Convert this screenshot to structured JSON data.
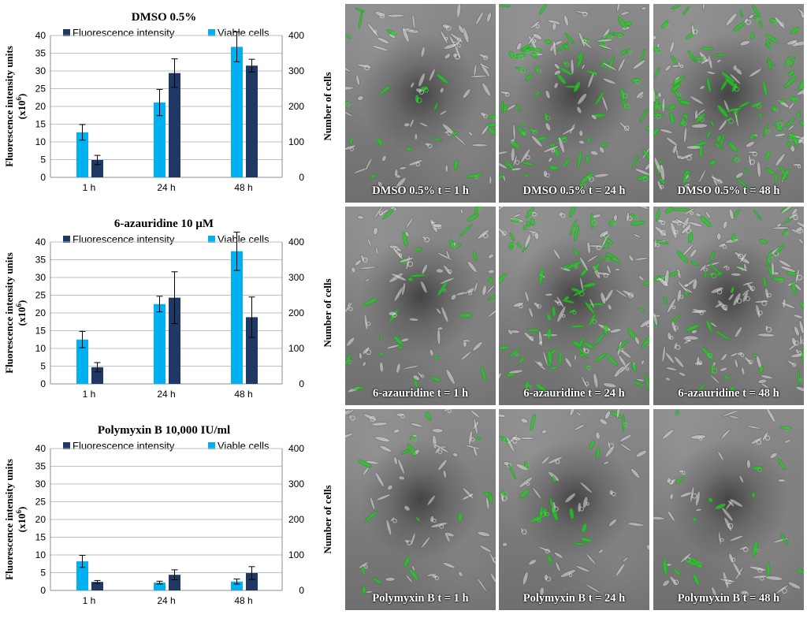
{
  "chart_data": [
    {
      "type": "bar",
      "title": "DMSO 0.5%",
      "categories": [
        "1 h",
        "24 h",
        "48 h"
      ],
      "ylabel": "Fluorescence intensity units (x10^6)",
      "y2label": "Number of cells",
      "ylim": [
        0,
        40
      ],
      "y2lim": [
        0,
        400
      ],
      "yticks": [
        "0",
        "5",
        "10",
        "15",
        "20",
        "25",
        "30",
        "35",
        "40"
      ],
      "y2ticks": [
        "0",
        "100",
        "200",
        "300",
        "400"
      ],
      "series": [
        {
          "name": "Fluorescence intensity",
          "axis": "left",
          "values": [
            4.9,
            29.4,
            31.5
          ],
          "errors": [
            1.3,
            4.0,
            1.8
          ],
          "color": "#1f3864"
        },
        {
          "name": "Viable cells",
          "axis": "right",
          "values": [
            127,
            211,
            368
          ],
          "errors": [
            22,
            37,
            42
          ],
          "color": "#00b0f0"
        }
      ],
      "grid": true,
      "legend": "top"
    },
    {
      "type": "bar",
      "title": "6-azauridine  10 µM",
      "categories": [
        "1 h",
        "24 h",
        "48 h"
      ],
      "ylabel": "Fluorescence intensity units (x10^6)",
      "y2label": "Number of cells",
      "ylim": [
        0,
        40
      ],
      "y2lim": [
        0,
        400
      ],
      "yticks": [
        "0",
        "5",
        "10",
        "15",
        "20",
        "25",
        "30",
        "35",
        "40"
      ],
      "y2ticks": [
        "0",
        "100",
        "200",
        "300",
        "400"
      ],
      "series": [
        {
          "name": "Fluorescence intensity",
          "axis": "left",
          "values": [
            4.7,
            24.3,
            18.8
          ],
          "errors": [
            1.3,
            7.3,
            5.7
          ],
          "color": "#1f3864"
        },
        {
          "name": "Viable cells",
          "axis": "right",
          "values": [
            125,
            225,
            374
          ],
          "errors": [
            23,
            22,
            54
          ],
          "color": "#00b0f0"
        }
      ],
      "grid": true,
      "legend": "top"
    },
    {
      "type": "bar",
      "title": "Polymyxin  B  10,000 IU/ml",
      "categories": [
        "1 h",
        "24 h",
        "48 h"
      ],
      "ylabel": "Fluorescence intensity units (x10^6)",
      "y2label": "Number of cells",
      "ylim": [
        0,
        40
      ],
      "y2lim": [
        0,
        400
      ],
      "yticks": [
        "0",
        "5",
        "10",
        "15",
        "20",
        "25",
        "30",
        "35",
        "40"
      ],
      "y2ticks": [
        "0",
        "100",
        "200",
        "300",
        "400"
      ],
      "series": [
        {
          "name": "Fluorescence intensity",
          "axis": "left",
          "values": [
            2.4,
            4.4,
            4.9
          ],
          "errors": [
            0.4,
            1.4,
            1.8
          ],
          "color": "#1f3864"
        },
        {
          "name": "Viable cells",
          "axis": "right",
          "values": [
            82,
            22,
            25
          ],
          "errors": [
            17,
            4,
            7
          ],
          "color": "#00b0f0"
        }
      ],
      "grid": true,
      "legend": "top"
    }
  ],
  "images": [
    {
      "caption": "DMSO  0.5% t = 1 h",
      "green": 0.25,
      "density": 0.35
    },
    {
      "caption": "DMSO  0.5% t = 24 h",
      "green": 0.55,
      "density": 0.7
    },
    {
      "caption": "DMSO  0.5% t = 48 h",
      "green": 0.6,
      "density": 0.9
    },
    {
      "caption": "6-azauridine  t = 1 h",
      "green": 0.25,
      "density": 0.45
    },
    {
      "caption": "6-azauridine  t = 24 h",
      "green": 0.5,
      "density": 0.75
    },
    {
      "caption": "6-azauridine  t = 48 h",
      "green": 0.3,
      "density": 0.9
    },
    {
      "caption": "Polymyxin  B  t = 1 h",
      "green": 0.15,
      "density": 0.3
    },
    {
      "caption": "Polymyxin  B  t = 24 h",
      "green": 0.3,
      "density": 0.25
    },
    {
      "caption": "Polymyxin  B  t = 48 h",
      "green": 0.25,
      "density": 0.2
    }
  ]
}
